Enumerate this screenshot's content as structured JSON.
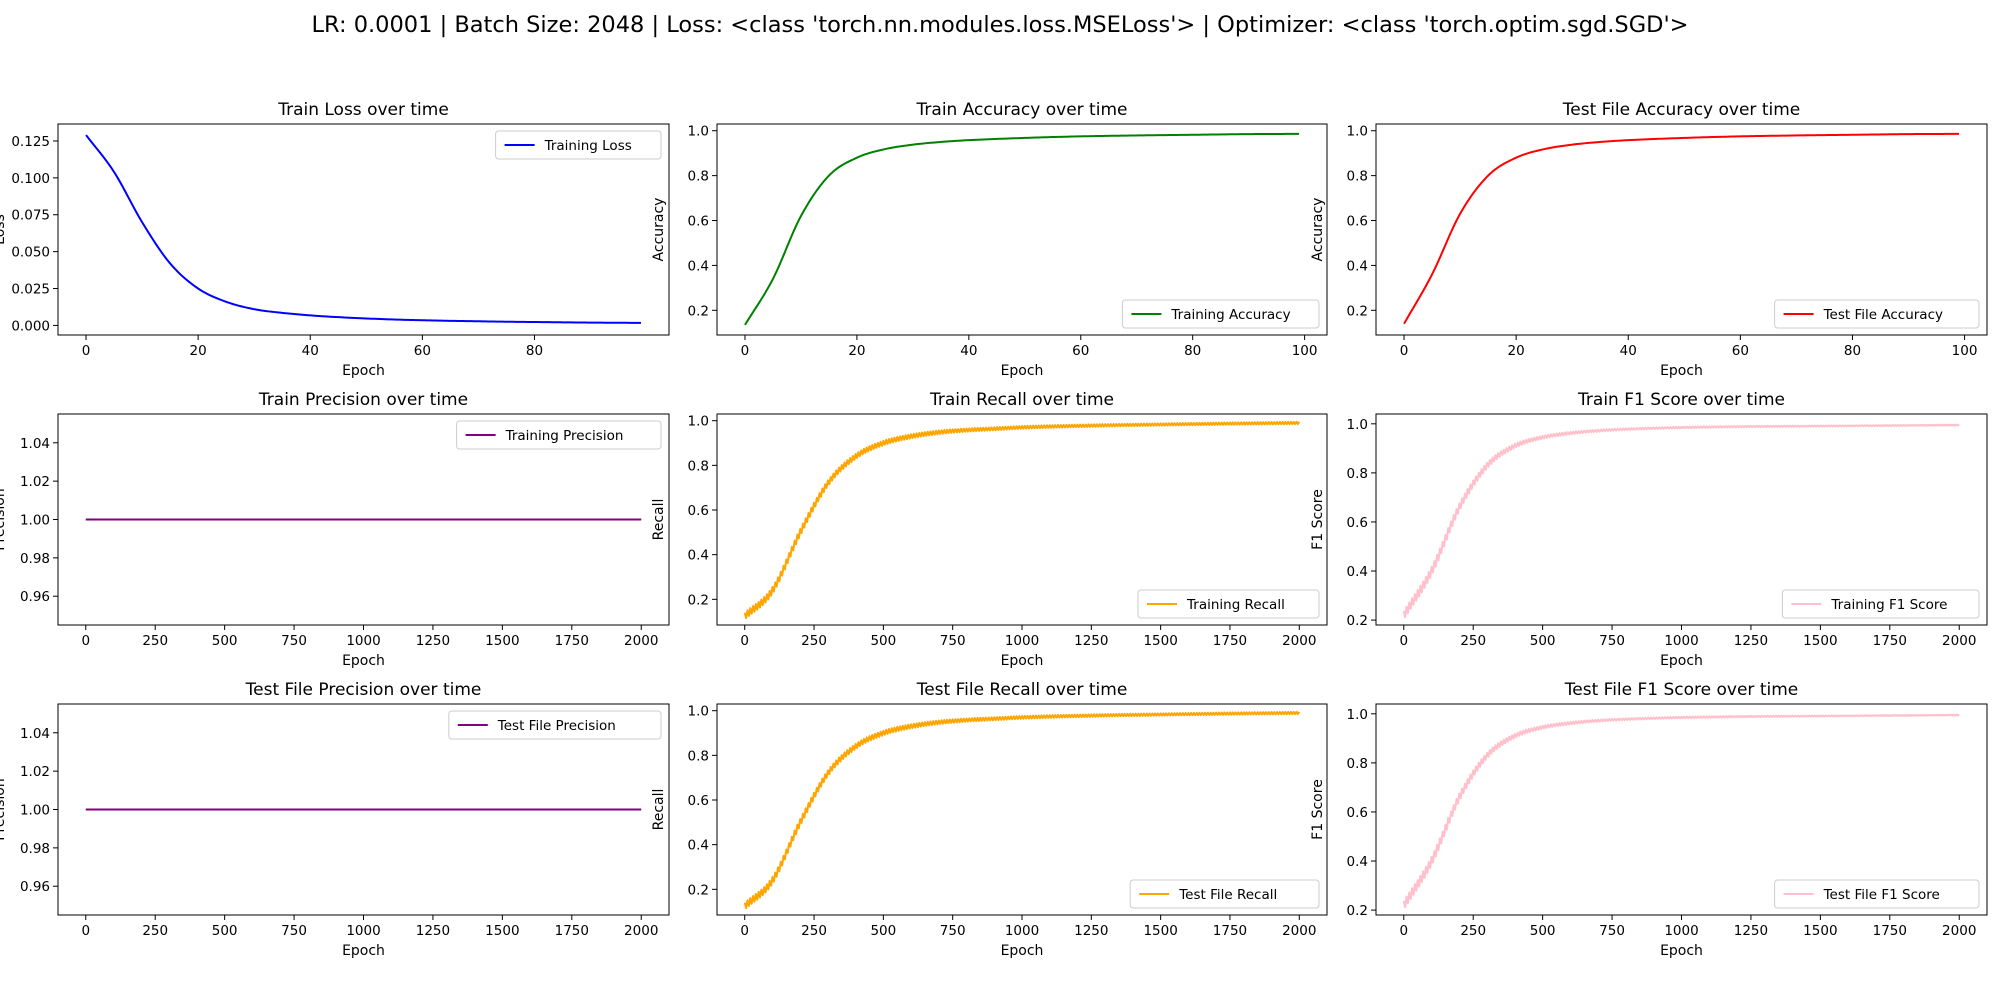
{
  "figure_title": "LR: 0.0001 | Batch Size: 2048 | Loss: <class 'torch.nn.modules.loss.MSELoss'> | Optimizer: <class 'torch.optim.sgd.SGD'>",
  "chart_data": [
    {
      "type": "line",
      "title": "Train Loss over time",
      "xlabel": "Epoch",
      "ylabel": "Loss",
      "xlim": [
        -5,
        104
      ],
      "ylim": [
        -0.0065,
        0.1365
      ],
      "xticks": [
        0,
        20,
        40,
        60,
        80
      ],
      "yticks": [
        0.0,
        0.025,
        0.05,
        0.075,
        0.1,
        0.125
      ],
      "ytick_labels": [
        "0.000",
        "0.025",
        "0.050",
        "0.075",
        "0.100",
        "0.125"
      ],
      "grid": false,
      "legend": "upper-right",
      "series": [
        {
          "name": "Training Loss",
          "color": "#0000ff",
          "x": [
            0,
            5,
            10,
            15,
            20,
            25,
            30,
            35,
            40,
            45,
            50,
            55,
            60,
            65,
            70,
            75,
            80,
            85,
            90,
            95,
            99
          ],
          "y": [
            0.129,
            0.104,
            0.07,
            0.042,
            0.025,
            0.016,
            0.011,
            0.0085,
            0.0068,
            0.0056,
            0.0047,
            0.004,
            0.0035,
            0.0031,
            0.0028,
            0.0025,
            0.0023,
            0.0021,
            0.0019,
            0.0018,
            0.0017
          ]
        }
      ]
    },
    {
      "type": "line",
      "title": "Train Accuracy over time",
      "xlabel": "Epoch",
      "ylabel": "Accuracy",
      "xlim": [
        -5,
        104
      ],
      "ylim": [
        0.09,
        1.03
      ],
      "xticks": [
        0,
        20,
        40,
        60,
        80,
        100
      ],
      "yticks": [
        0.2,
        0.4,
        0.6,
        0.8,
        1.0
      ],
      "ytick_labels": [
        "0.2",
        "0.4",
        "0.6",
        "0.8",
        "1.0"
      ],
      "grid": false,
      "legend": "lower-right",
      "series": [
        {
          "name": "Training Accuracy",
          "color": "#008000",
          "x": [
            0,
            5,
            10,
            15,
            20,
            25,
            30,
            35,
            40,
            50,
            60,
            70,
            80,
            90,
            99
          ],
          "y": [
            0.135,
            0.34,
            0.62,
            0.8,
            0.88,
            0.918,
            0.938,
            0.95,
            0.958,
            0.968,
            0.975,
            0.979,
            0.982,
            0.985,
            0.986
          ]
        }
      ]
    },
    {
      "type": "line",
      "title": "Test File Accuracy over time",
      "xlabel": "Epoch",
      "ylabel": "Accuracy",
      "xlim": [
        -5,
        104
      ],
      "ylim": [
        0.09,
        1.03
      ],
      "xticks": [
        0,
        20,
        40,
        60,
        80,
        100
      ],
      "yticks": [
        0.2,
        0.4,
        0.6,
        0.8,
        1.0
      ],
      "ytick_labels": [
        "0.2",
        "0.4",
        "0.6",
        "0.8",
        "1.0"
      ],
      "grid": false,
      "legend": "lower-right",
      "series": [
        {
          "name": "Test File Accuracy",
          "color": "#ff0000",
          "x": [
            0,
            5,
            10,
            15,
            20,
            25,
            30,
            35,
            40,
            50,
            60,
            70,
            80,
            90,
            99
          ],
          "y": [
            0.14,
            0.36,
            0.63,
            0.8,
            0.88,
            0.918,
            0.938,
            0.95,
            0.958,
            0.968,
            0.975,
            0.979,
            0.982,
            0.985,
            0.986
          ]
        }
      ]
    },
    {
      "type": "line",
      "title": "Train Precision over time",
      "xlabel": "Epoch",
      "ylabel": "Precision",
      "xlim": [
        -100,
        2100
      ],
      "ylim": [
        0.945,
        1.055
      ],
      "xticks": [
        0,
        250,
        500,
        750,
        1000,
        1250,
        1500,
        1750,
        2000
      ],
      "yticks": [
        0.96,
        0.98,
        1.0,
        1.02,
        1.04
      ],
      "ytick_labels": [
        "0.96",
        "0.98",
        "1.00",
        "1.02",
        "1.04"
      ],
      "grid": false,
      "legend": "upper-right",
      "series": [
        {
          "name": "Training Precision",
          "color": "#800080",
          "x": [
            0,
            2000
          ],
          "y": [
            1.0,
            1.0
          ]
        }
      ]
    },
    {
      "type": "line",
      "title": "Train Recall over time",
      "xlabel": "Epoch",
      "ylabel": "Recall",
      "xlim": [
        -100,
        2100
      ],
      "ylim": [
        0.085,
        1.03
      ],
      "xticks": [
        0,
        250,
        500,
        750,
        1000,
        1250,
        1500,
        1750,
        2000
      ],
      "yticks": [
        0.2,
        0.4,
        0.6,
        0.8,
        1.0
      ],
      "ytick_labels": [
        "0.2",
        "0.4",
        "0.6",
        "0.8",
        "1.0"
      ],
      "grid": false,
      "legend": "lower-right",
      "series": [
        {
          "name": "Training Recall",
          "color": "#ffa500",
          "x": [
            0,
            100,
            200,
            300,
            400,
            500,
            600,
            700,
            800,
            900,
            1000,
            1250,
            1500,
            1750,
            2000
          ],
          "y": [
            0.125,
            0.24,
            0.5,
            0.72,
            0.84,
            0.9,
            0.93,
            0.948,
            0.958,
            0.964,
            0.97,
            0.978,
            0.983,
            0.987,
            0.99
          ],
          "band": [
            0.03,
            0.03,
            0.03,
            0.025,
            0.022,
            0.02,
            0.018,
            0.016,
            0.014,
            0.013,
            0.012,
            0.011,
            0.01,
            0.01,
            0.01
          ]
        }
      ]
    },
    {
      "type": "line",
      "title": "Train F1 Score over time",
      "xlabel": "Epoch",
      "ylabel": "F1 Score",
      "xlim": [
        -100,
        2100
      ],
      "ylim": [
        0.18,
        1.04
      ],
      "xticks": [
        0,
        250,
        500,
        750,
        1000,
        1250,
        1500,
        1750,
        2000
      ],
      "yticks": [
        0.2,
        0.4,
        0.6,
        0.8,
        1.0
      ],
      "ytick_labels": [
        "0.2",
        "0.4",
        "0.6",
        "0.8",
        "1.0"
      ],
      "grid": false,
      "legend": "lower-right",
      "series": [
        {
          "name": "Training F1 Score",
          "color": "#ffc0cb",
          "x": [
            0,
            100,
            200,
            300,
            400,
            500,
            600,
            700,
            800,
            900,
            1000,
            1250,
            1500,
            1750,
            2000
          ],
          "y": [
            0.22,
            0.4,
            0.66,
            0.83,
            0.91,
            0.945,
            0.962,
            0.972,
            0.978,
            0.982,
            0.985,
            0.989,
            0.991,
            0.993,
            0.995
          ],
          "band": [
            0.035,
            0.035,
            0.03,
            0.022,
            0.016,
            0.012,
            0.01,
            0.008,
            0.007,
            0.006,
            0.006,
            0.005,
            0.004,
            0.004,
            0.004
          ]
        }
      ]
    },
    {
      "type": "line",
      "title": "Test File Precision over time",
      "xlabel": "Epoch",
      "ylabel": "Precision",
      "xlim": [
        -100,
        2100
      ],
      "ylim": [
        0.945,
        1.055
      ],
      "xticks": [
        0,
        250,
        500,
        750,
        1000,
        1250,
        1500,
        1750,
        2000
      ],
      "yticks": [
        0.96,
        0.98,
        1.0,
        1.02,
        1.04
      ],
      "ytick_labels": [
        "0.96",
        "0.98",
        "1.00",
        "1.02",
        "1.04"
      ],
      "grid": false,
      "legend": "upper-right",
      "series": [
        {
          "name": "Test File Precision",
          "color": "#800080",
          "x": [
            0,
            2000
          ],
          "y": [
            1.0,
            1.0
          ]
        }
      ]
    },
    {
      "type": "line",
      "title": "Test File Recall over time",
      "xlabel": "Epoch",
      "ylabel": "Recall",
      "xlim": [
        -100,
        2100
      ],
      "ylim": [
        0.085,
        1.03
      ],
      "xticks": [
        0,
        250,
        500,
        750,
        1000,
        1250,
        1500,
        1750,
        2000
      ],
      "yticks": [
        0.2,
        0.4,
        0.6,
        0.8,
        1.0
      ],
      "ytick_labels": [
        "0.2",
        "0.4",
        "0.6",
        "0.8",
        "1.0"
      ],
      "grid": false,
      "legend": "lower-right",
      "series": [
        {
          "name": "Test File Recall",
          "color": "#ffa500",
          "x": [
            0,
            100,
            200,
            300,
            400,
            500,
            600,
            700,
            800,
            900,
            1000,
            1250,
            1500,
            1750,
            2000
          ],
          "y": [
            0.125,
            0.24,
            0.5,
            0.72,
            0.84,
            0.9,
            0.93,
            0.948,
            0.958,
            0.964,
            0.97,
            0.978,
            0.983,
            0.987,
            0.99
          ],
          "band": [
            0.03,
            0.03,
            0.03,
            0.025,
            0.022,
            0.02,
            0.018,
            0.016,
            0.014,
            0.013,
            0.012,
            0.011,
            0.01,
            0.01,
            0.01
          ]
        }
      ]
    },
    {
      "type": "line",
      "title": "Test File F1 Score over time",
      "xlabel": "Epoch",
      "ylabel": "F1 Score",
      "xlim": [
        -100,
        2100
      ],
      "ylim": [
        0.18,
        1.04
      ],
      "xticks": [
        0,
        250,
        500,
        750,
        1000,
        1250,
        1500,
        1750,
        2000
      ],
      "yticks": [
        0.2,
        0.4,
        0.6,
        0.8,
        1.0
      ],
      "ytick_labels": [
        "0.2",
        "0.4",
        "0.6",
        "0.8",
        "1.0"
      ],
      "grid": false,
      "legend": "lower-right",
      "series": [
        {
          "name": "Test File F1 Score",
          "color": "#ffc0cb",
          "x": [
            0,
            100,
            200,
            300,
            400,
            500,
            600,
            700,
            800,
            900,
            1000,
            1250,
            1500,
            1750,
            2000
          ],
          "y": [
            0.22,
            0.4,
            0.66,
            0.83,
            0.91,
            0.945,
            0.962,
            0.972,
            0.978,
            0.982,
            0.985,
            0.989,
            0.991,
            0.993,
            0.995
          ],
          "band": [
            0.035,
            0.035,
            0.03,
            0.022,
            0.016,
            0.012,
            0.01,
            0.008,
            0.007,
            0.006,
            0.006,
            0.005,
            0.004,
            0.004,
            0.004
          ]
        }
      ]
    }
  ]
}
